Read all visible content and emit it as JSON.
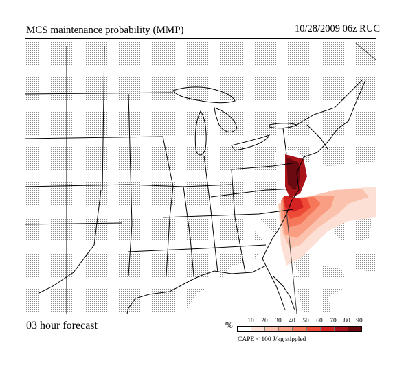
{
  "header": {
    "title": "MCS maintenance probability (MMP)",
    "datetime": "10/28/2009  06z  RUC"
  },
  "footer": {
    "forecast_label": "03 hour forecast",
    "stipple_note": "CAPE < 100 J/kg stippled"
  },
  "legend": {
    "unit": "%",
    "ticks": [
      "10",
      "20",
      "30",
      "40",
      "50",
      "60",
      "70",
      "80",
      "90"
    ],
    "colors": [
      "#ffffff",
      "#fde0d5",
      "#fbc3ae",
      "#f99e82",
      "#f6765a",
      "#ed4a37",
      "#d42121",
      "#a8141a",
      "#6b0a10"
    ]
  },
  "map": {
    "region": "Contiguous United States (central & eastern)",
    "stipple_color": "#8a8a8a",
    "unstippled_areas": [
      "Southeast coast",
      "Florida",
      "Gulf coast",
      "Mid-Atlantic offshore"
    ],
    "high_probability_area": "Virginia / North Carolina coast and offshore Atlantic"
  }
}
